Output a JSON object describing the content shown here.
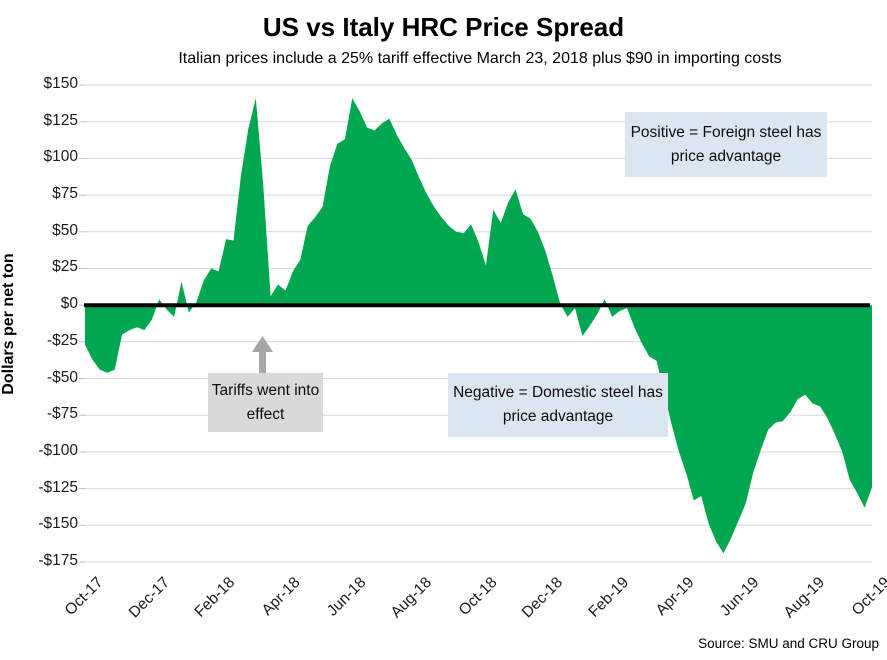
{
  "chart_data": {
    "type": "area",
    "title": "US vs Italy HRC Price Spread",
    "subtitle": "Italian prices include a 25% tariff effective March 23, 2018 plus $90 in importing costs",
    "ylabel": "Dollars per net ton",
    "xlabel": "",
    "ylim": [
      -175,
      150
    ],
    "y_tick_step": 25,
    "y_tick_labels": [
      "$150",
      "$125",
      "$100",
      "$75",
      "$50",
      "$25",
      "$0",
      "-$25",
      "-$50",
      "-$75",
      "-$100",
      "-$125",
      "-$150",
      "-$175"
    ],
    "x_tick_labels": [
      "Oct-17",
      "Dec-17",
      "Feb-18",
      "Apr-18",
      "Jun-18",
      "Aug-18",
      "Oct-18",
      "Dec-18",
      "Feb-19",
      "Apr-19",
      "Jun-19",
      "Aug-19",
      "Oct-19"
    ],
    "frequency": "weekly",
    "x_range": "Oct-2017 to Nov-2019",
    "grid": true,
    "zero_line": true,
    "legend": "none",
    "series": [
      {
        "name": "US vs Italy HRC price spread ($ per net ton)",
        "values": [
          -27,
          -37,
          -44,
          -46,
          -44,
          -20,
          -17,
          -15,
          -17,
          -10,
          4,
          -3,
          -8,
          16,
          -5,
          2,
          17,
          25,
          23,
          45,
          44,
          88,
          120,
          141,
          82,
          6,
          14,
          10,
          23,
          31,
          54,
          60,
          67,
          95,
          110,
          113,
          141,
          132,
          121,
          119,
          124,
          127,
          116,
          107,
          99,
          87,
          76,
          67,
          60,
          54,
          50,
          49,
          55,
          43,
          27,
          65,
          56,
          70,
          79,
          62,
          59,
          50,
          37,
          20,
          1,
          -8,
          -2,
          -21,
          -14,
          -6,
          4,
          -8,
          -4,
          -2,
          -15,
          -26,
          -35,
          -38,
          -60,
          -81,
          -100,
          -115,
          -133,
          -130,
          -149,
          -161,
          -169,
          -159,
          -147,
          -135,
          -114,
          -99,
          -85,
          -80,
          -79,
          -73,
          -64,
          -61,
          -67,
          -69,
          -77,
          -88,
          -100,
          -119,
          -128,
          -138,
          -124
        ]
      }
    ],
    "colors": {
      "area_fill": "#00A650",
      "gridline": "#D9D9D9",
      "tick_mark": "#BFBFBF",
      "zero_line": "#000000"
    }
  },
  "annotations": {
    "positive": "Positive = Foreign steel has price advantage",
    "negative": "Negative = Domestic steel has price advantage",
    "tariffs": "Tariffs went into effect",
    "callout_blue": "#DCE6F1",
    "callout_gray": "#D9D9D9",
    "arrow_color": "#A6A6A6"
  },
  "footer": {
    "source": "Source: SMU and CRU Group"
  }
}
